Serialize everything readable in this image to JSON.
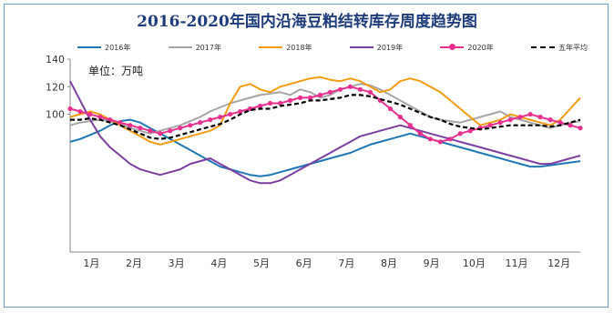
{
  "chart_data": {
    "type": "line",
    "title": "2016-2020年国内沿海豆粕结转库存周度趋势图",
    "unit_label": "单位：万吨",
    "xlabel": "",
    "ylabel": "",
    "ylim": [
      0,
      140
    ],
    "y_ticks": [
      140,
      120,
      100
    ],
    "x_tick_labels": [
      "1月",
      "2月",
      "3月",
      "4月",
      "5月",
      "6月",
      "7月",
      "8月",
      "9月",
      "10月",
      "11月",
      "12月"
    ],
    "legend_placement": "top",
    "grid": false,
    "x": [
      1,
      2,
      3,
      4,
      5,
      6,
      7,
      8,
      9,
      10,
      11,
      12,
      13,
      14,
      15,
      16,
      17,
      18,
      19,
      20,
      21,
      22,
      23,
      24,
      25,
      26,
      27,
      28,
      29,
      30,
      31,
      32,
      33,
      34,
      35,
      36,
      37,
      38,
      39,
      40,
      41,
      42,
      43,
      44,
      45,
      46,
      47,
      48,
      49,
      50,
      51,
      52
    ],
    "series": [
      {
        "name": "2016年",
        "color": "#1f77b4",
        "style": "solid",
        "values": [
          80,
          82,
          85,
          88,
          92,
          95,
          96,
          94,
          90,
          86,
          82,
          78,
          74,
          70,
          66,
          62,
          60,
          58,
          56,
          55,
          56,
          58,
          60,
          62,
          64,
          66,
          68,
          70,
          72,
          75,
          78,
          80,
          82,
          84,
          86,
          84,
          82,
          80,
          78,
          76,
          74,
          72,
          70,
          68,
          66,
          64,
          62,
          62,
          63,
          64,
          65,
          66
        ]
      },
      {
        "name": "2017年",
        "color": "#a6a6a6",
        "style": "solid",
        "values": [
          92,
          94,
          95,
          96,
          95,
          93,
          90,
          88,
          86,
          88,
          90,
          92,
          95,
          98,
          102,
          105,
          108,
          110,
          112,
          114,
          115,
          116,
          114,
          118,
          116,
          112,
          114,
          118,
          120,
          122,
          121,
          118,
          114,
          110,
          106,
          102,
          98,
          96,
          95,
          94,
          96,
          98,
          100,
          102,
          98,
          96,
          94,
          92,
          90,
          92,
          94,
          95
        ]
      },
      {
        "name": "2018年",
        "color": "#f39c12",
        "style": "solid",
        "values": [
          98,
          100,
          102,
          100,
          96,
          92,
          88,
          84,
          80,
          78,
          80,
          82,
          84,
          86,
          88,
          92,
          108,
          120,
          122,
          118,
          116,
          120,
          122,
          124,
          126,
          127,
          125,
          124,
          126,
          124,
          120,
          116,
          118,
          124,
          126,
          124,
          120,
          116,
          110,
          104,
          98,
          92,
          94,
          96,
          100,
          98,
          96,
          94,
          92,
          96,
          104,
          112
        ]
      },
      {
        "name": "2019年",
        "color": "#7b3fa0",
        "style": "solid",
        "values": [
          124,
          110,
          96,
          84,
          76,
          70,
          64,
          60,
          58,
          56,
          58,
          60,
          64,
          66,
          68,
          64,
          60,
          56,
          52,
          50,
          50,
          52,
          56,
          60,
          64,
          68,
          72,
          76,
          80,
          84,
          86,
          88,
          90,
          92,
          90,
          88,
          86,
          84,
          82,
          80,
          78,
          76,
          74,
          72,
          70,
          68,
          66,
          64,
          64,
          66,
          68,
          70
        ]
      },
      {
        "name": "2020年",
        "color": "#e8318f",
        "style": "solid",
        "values": [
          104,
          102,
          100,
          98,
          96,
          94,
          92,
          90,
          88,
          86,
          88,
          90,
          92,
          94,
          96,
          98,
          100,
          102,
          104,
          106,
          108,
          108,
          110,
          112,
          112,
          114,
          116,
          118,
          120,
          118,
          116,
          110,
          104,
          98,
          92,
          86,
          82,
          80,
          82,
          86,
          88,
          90,
          92,
          94,
          96,
          98,
          100,
          98,
          96,
          94,
          92,
          90
        ]
      },
      {
        "name": "五年平均",
        "color": "#000000",
        "style": "dashed",
        "values": [
          96,
          96,
          97,
          96,
          94,
          92,
          89,
          86,
          83,
          82,
          83,
          85,
          87,
          89,
          91,
          93,
          96,
          100,
          103,
          104,
          104,
          106,
          107,
          108,
          110,
          110,
          111,
          112,
          114,
          114,
          113,
          111,
          109,
          107,
          104,
          101,
          98,
          96,
          93,
          91,
          90,
          89,
          90,
          91,
          92,
          92,
          92,
          92,
          91,
          92,
          94,
          96
        ]
      }
    ]
  }
}
